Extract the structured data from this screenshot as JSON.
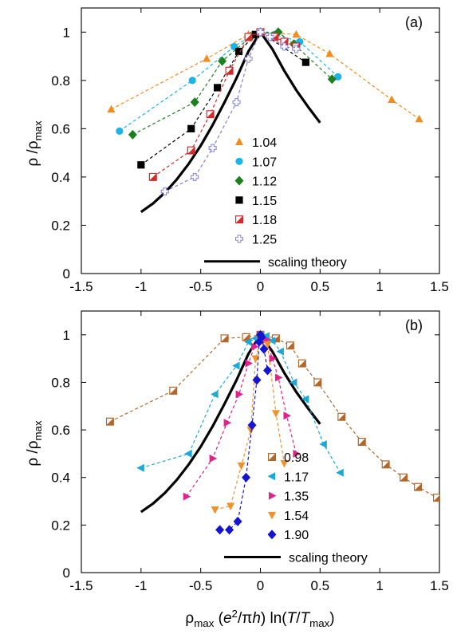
{
  "chart_data": [
    {
      "type": "scatter",
      "panel_label": "(a)",
      "xlabel": "",
      "ylabel": "ρ /ρ<sub>max</sub>",
      "xlim": [
        -1.5,
        1.5
      ],
      "ylim": [
        0,
        1.1
      ],
      "xticks": [
        "-1.5",
        "-1",
        "-0.5",
        "0",
        "0.5",
        "1",
        "1.5"
      ],
      "yticks": [
        "0",
        "0.2",
        "0.4",
        "0.6",
        "0.8",
        "1"
      ],
      "legend_position": "center",
      "series": [
        {
          "name": "1.04",
          "marker": "triangle",
          "color": "#f28c1e",
          "x": [
            -1.25,
            -0.45,
            -0.1,
            0,
            0.3,
            0.58,
            1.1,
            1.33
          ],
          "y": [
            0.68,
            0.89,
            0.99,
            1.0,
            0.99,
            0.91,
            0.72,
            0.64
          ]
        },
        {
          "name": "1.07",
          "marker": "circle",
          "color": "#1cb4e6",
          "x": [
            -1.18,
            -0.57,
            -0.22,
            -0.06,
            0,
            0.12,
            0.33,
            0.65
          ],
          "y": [
            0.59,
            0.8,
            0.94,
            0.99,
            1.0,
            0.99,
            0.96,
            0.815
          ]
        },
        {
          "name": "1.12",
          "marker": "diamond",
          "color": "#1d7f1d",
          "x": [
            -1.07,
            -0.55,
            -0.32,
            -0.08,
            0,
            0.15,
            0.28,
            0.6
          ],
          "y": [
            0.575,
            0.71,
            0.88,
            0.98,
            1.0,
            1.0,
            0.95,
            0.805
          ]
        },
        {
          "name": "1.15",
          "marker": "square",
          "color": "#000000",
          "x": [
            -1.0,
            -0.58,
            -0.36,
            -0.18,
            -0.04,
            0,
            0.38
          ],
          "y": [
            0.45,
            0.6,
            0.77,
            0.92,
            0.99,
            1.0,
            0.875
          ]
        },
        {
          "name": "1.18",
          "marker": "half-square",
          "color": "#d42a2a",
          "x": [
            -0.9,
            -0.58,
            -0.42,
            -0.26,
            -0.1,
            0,
            0.12,
            0.2,
            0.3
          ],
          "y": [
            0.4,
            0.51,
            0.66,
            0.84,
            0.98,
            1.0,
            0.98,
            0.96,
            0.94
          ]
        },
        {
          "name": "1.25",
          "marker": "cross",
          "color": "#8080d8",
          "x": [
            -0.8,
            -0.55,
            -0.4,
            -0.2,
            -0.1,
            0,
            0.08,
            0.2,
            0.3
          ],
          "y": [
            0.34,
            0.4,
            0.52,
            0.71,
            0.89,
            1.0,
            0.98,
            0.94,
            0.93
          ]
        }
      ],
      "curve": {
        "name": "scaling theory",
        "color": "#000000"
      }
    },
    {
      "type": "scatter",
      "panel_label": "(b)",
      "xlabel": "ρ<sub>max</sub> (<i>e</i><sup>2</sup>/π<i>h</i>) ln(<i>T</i>/<i>T</i><sub>max</sub>)",
      "ylabel": "ρ /ρ<sub>max</sub>",
      "xlim": [
        -1.5,
        1.5
      ],
      "ylim": [
        0,
        1.1
      ],
      "xticks": [
        "-1.5",
        "-1",
        "-0.5",
        "0",
        "0.5",
        "1",
        "1.5"
      ],
      "yticks": [
        "0",
        "0.2",
        "0.4",
        "0.6",
        "0.8",
        "1"
      ],
      "legend_position": "right",
      "series": [
        {
          "name": "0.98",
          "marker": "half-square",
          "color": "#b3672a",
          "x": [
            -1.26,
            -0.73,
            -0.3,
            -0.12,
            0,
            0.13,
            0.25,
            0.35,
            0.48,
            0.68,
            0.85,
            1.05,
            1.2,
            1.32,
            1.48
          ],
          "y": [
            0.635,
            0.765,
            0.985,
            0.99,
            1.0,
            0.985,
            0.955,
            0.88,
            0.8,
            0.655,
            0.55,
            0.455,
            0.4,
            0.36,
            0.315
          ]
        },
        {
          "name": "1.17",
          "marker": "triangle-left",
          "color": "#1ca9d8",
          "x": [
            -1.0,
            -0.6,
            -0.38,
            -0.2,
            -0.1,
            -0.04,
            0,
            0.05,
            0.1,
            0.17,
            0.28,
            0.38,
            0.53,
            0.67
          ],
          "y": [
            0.44,
            0.5,
            0.75,
            0.87,
            0.97,
            0.985,
            1.0,
            0.995,
            0.975,
            0.93,
            0.8,
            0.73,
            0.54,
            0.42
          ]
        },
        {
          "name": "1.35",
          "marker": "triangle-right",
          "color": "#e2228a",
          "x": [
            -0.62,
            -0.4,
            -0.28,
            -0.18,
            -0.1,
            -0.05,
            0,
            0.05,
            0.1,
            0.15,
            0.22,
            0.3
          ],
          "y": [
            0.32,
            0.48,
            0.63,
            0.75,
            0.88,
            0.95,
            1.0,
            0.98,
            0.9,
            0.82,
            0.66,
            0.5
          ]
        },
        {
          "name": "1.54",
          "marker": "triangle-down",
          "color": "#f0922a",
          "x": [
            -0.38,
            -0.25,
            -0.16,
            -0.08,
            -0.04,
            0,
            0.06,
            0.13,
            0.2
          ],
          "y": [
            0.265,
            0.28,
            0.45,
            0.6,
            0.9,
            0.98,
            0.96,
            0.67,
            0.46
          ]
        },
        {
          "name": "1.90",
          "marker": "diamond",
          "color": "#1414d2",
          "x": [
            -0.34,
            -0.26,
            -0.19,
            -0.12,
            -0.07,
            -0.03,
            -0.01,
            0,
            0.01,
            0.03,
            0.06
          ],
          "y": [
            0.18,
            0.18,
            0.215,
            0.4,
            0.62,
            0.81,
            0.97,
            1.0,
            0.99,
            0.94,
            0.85
          ]
        }
      ],
      "curve": {
        "name": "scaling theory",
        "color": "#000000"
      }
    }
  ],
  "scaling_theory_curve": {
    "x": [
      -1.0,
      -0.9,
      -0.8,
      -0.7,
      -0.6,
      -0.5,
      -0.4,
      -0.3,
      -0.2,
      -0.1,
      0,
      0.1,
      0.2,
      0.3,
      0.4,
      0.5
    ],
    "y": [
      0.255,
      0.29,
      0.335,
      0.39,
      0.455,
      0.53,
      0.615,
      0.71,
      0.81,
      0.92,
      1.0,
      0.93,
      0.84,
      0.76,
      0.69,
      0.625
    ]
  }
}
